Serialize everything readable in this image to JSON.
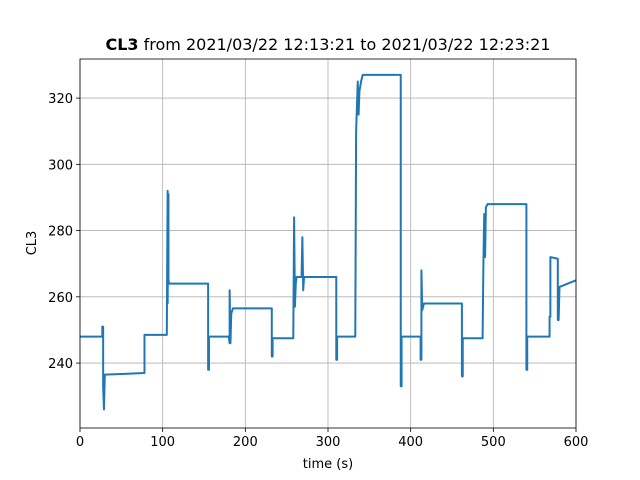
{
  "chart_data": {
    "type": "line",
    "title_bold": "CL3",
    "title": "from 2021/03/22 12:13:21 to 2021/03/22 12:23:21",
    "xlabel": "time (s)",
    "ylabel": "CL3",
    "color": "#1f77b4",
    "grid": true,
    "xlim": [
      0,
      600
    ],
    "xticks": [
      0,
      100,
      200,
      300,
      400,
      500,
      600
    ],
    "ylim": [
      220.4,
      331.8
    ],
    "yticks": [
      240,
      260,
      280,
      300,
      320
    ],
    "x": [
      0,
      27,
      27,
      28,
      28,
      29,
      30,
      78,
      78,
      105,
      106,
      106,
      107,
      107,
      108,
      155,
      155,
      156,
      156,
      180,
      181,
      181,
      182,
      183,
      185,
      232,
      232,
      233,
      233,
      258,
      259,
      260,
      261,
      262,
      268,
      269,
      270,
      271,
      272,
      310,
      310,
      311,
      311,
      333,
      334,
      336,
      337,
      338,
      340,
      342,
      345,
      388,
      388,
      389,
      389,
      412,
      412,
      413,
      413,
      414,
      416,
      462,
      462,
      463,
      463,
      487,
      488,
      489,
      490,
      491,
      493,
      540,
      540,
      541,
      541,
      568,
      568,
      569,
      569,
      578,
      578,
      579,
      580,
      600
    ],
    "values": [
      248,
      248,
      251,
      251,
      233,
      226,
      236.5,
      237,
      248.5,
      248.5,
      292,
      258,
      291,
      265,
      264,
      264,
      238,
      238,
      248,
      248,
      246,
      262,
      246,
      255,
      256.5,
      256.5,
      242,
      242,
      247.5,
      247.5,
      284,
      257,
      264,
      266,
      266,
      278,
      262,
      266,
      266,
      266,
      241,
      241,
      248,
      248,
      310,
      325,
      315,
      322,
      325,
      327,
      327,
      327,
      233,
      233,
      248,
      248,
      241,
      241,
      268,
      256,
      258,
      258,
      236,
      236,
      247.5,
      247.5,
      270,
      285,
      272,
      287,
      288,
      288,
      238,
      238,
      248,
      248,
      254,
      254,
      272,
      271.5,
      253,
      253,
      263,
      265
    ]
  }
}
